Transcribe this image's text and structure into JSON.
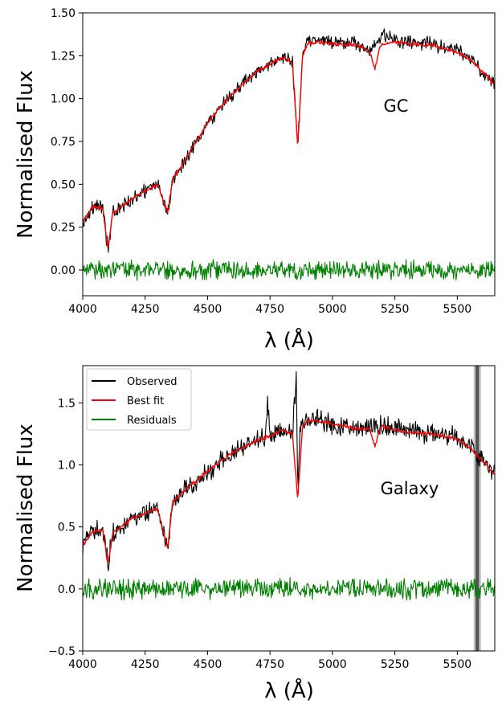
{
  "chart_data": [
    {
      "type": "line",
      "xlabel": "λ (Å)",
      "ylabel": "Normalised Flux",
      "annotation": "GC",
      "xlim": [
        4000,
        5650
      ],
      "ylim": [
        -0.15,
        1.5
      ],
      "xticks": [
        4000,
        4250,
        4500,
        4750,
        5000,
        5250,
        5500
      ],
      "xtick_labels": [
        "4000",
        "4250",
        "4500",
        "4750",
        "5000",
        "5250",
        "5500"
      ],
      "yticks": [
        0.0,
        0.25,
        0.5,
        0.75,
        1.0,
        1.25,
        1.5
      ],
      "ytick_labels": [
        "0.00",
        "0.25",
        "0.50",
        "0.75",
        "1.00",
        "1.25",
        "1.50"
      ],
      "grid": false,
      "legend": null,
      "series": [
        {
          "color": "#000000",
          "noise": 0.03,
          "x": [
            4000,
            4040,
            4080,
            4101,
            4120,
            4200,
            4300,
            4340,
            4360,
            4400,
            4500,
            4600,
            4700,
            4800,
            4840,
            4861,
            4880,
            4900,
            4950,
            5000,
            5100,
            5150,
            5200,
            5250,
            5300,
            5400,
            5500,
            5550,
            5600,
            5650
          ],
          "y": [
            0.28,
            0.37,
            0.37,
            0.11,
            0.33,
            0.42,
            0.5,
            0.33,
            0.53,
            0.62,
            0.86,
            1.03,
            1.16,
            1.24,
            1.21,
            0.72,
            1.24,
            1.33,
            1.34,
            1.33,
            1.32,
            1.27,
            1.37,
            1.34,
            1.33,
            1.32,
            1.28,
            1.24,
            1.16,
            1.08
          ]
        },
        {
          "color": "#ff0000",
          "noise": 0.008,
          "x": [
            4000,
            4040,
            4080,
            4101,
            4120,
            4200,
            4300,
            4340,
            4360,
            4400,
            4500,
            4600,
            4700,
            4800,
            4840,
            4861,
            4880,
            4900,
            4950,
            5000,
            5100,
            5150,
            5170,
            5190,
            5200,
            5250,
            5300,
            5400,
            5500,
            5550,
            5600,
            5650
          ],
          "y": [
            0.28,
            0.37,
            0.36,
            0.12,
            0.33,
            0.42,
            0.5,
            0.33,
            0.53,
            0.62,
            0.86,
            1.03,
            1.16,
            1.24,
            1.21,
            0.72,
            1.24,
            1.32,
            1.33,
            1.32,
            1.31,
            1.27,
            1.17,
            1.3,
            1.32,
            1.33,
            1.32,
            1.31,
            1.27,
            1.23,
            1.16,
            1.08
          ]
        },
        {
          "color": "#008000",
          "noise": 0.04,
          "x": [
            4000,
            5650
          ],
          "y": [
            0.0,
            0.0
          ]
        }
      ]
    },
    {
      "type": "line",
      "xlabel": "λ (Å)",
      "ylabel": "Normalised Flux",
      "annotation": "Galaxy",
      "xlim": [
        4000,
        5650
      ],
      "ylim": [
        -0.5,
        1.8
      ],
      "xticks": [
        4000,
        4250,
        4500,
        4750,
        5000,
        5250,
        5500
      ],
      "xtick_labels": [
        "4000",
        "4250",
        "4500",
        "4750",
        "5000",
        "5250",
        "5500"
      ],
      "yticks": [
        -0.5,
        0.0,
        0.5,
        1.0,
        1.5
      ],
      "ytick_labels": [
        "−0.5",
        "0.0",
        "0.5",
        "1.0",
        "1.5"
      ],
      "grid": false,
      "legend": "top-left",
      "shaded_band": {
        "x0": 5565,
        "x1": 5595,
        "dark_x0": 5573,
        "dark_x1": 5587
      },
      "series": [
        {
          "name": "Observed",
          "color": "#000000",
          "noise": 0.06,
          "x": [
            4000,
            4040,
            4080,
            4101,
            4120,
            4200,
            4300,
            4340,
            4360,
            4400,
            4500,
            4600,
            4700,
            4730,
            4740,
            4750,
            4800,
            4840,
            4855,
            4861,
            4870,
            4900,
            4950,
            5000,
            5100,
            5200,
            5300,
            5400,
            5500,
            5550,
            5600,
            5650
          ],
          "y": [
            0.35,
            0.47,
            0.5,
            0.2,
            0.45,
            0.57,
            0.66,
            0.33,
            0.7,
            0.78,
            0.95,
            1.1,
            1.2,
            1.22,
            1.5,
            1.23,
            1.28,
            1.25,
            1.73,
            0.75,
            1.3,
            1.37,
            1.36,
            1.33,
            1.3,
            1.32,
            1.27,
            1.26,
            1.22,
            1.15,
            1.05,
            0.92
          ]
        },
        {
          "name": "Best fit",
          "color": "#ff0000",
          "noise": 0.01,
          "x": [
            4000,
            4040,
            4080,
            4101,
            4120,
            4200,
            4300,
            4340,
            4360,
            4400,
            4500,
            4600,
            4700,
            4750,
            4800,
            4840,
            4861,
            4880,
            4900,
            4950,
            5000,
            5100,
            5150,
            5170,
            5190,
            5200,
            5300,
            5400,
            5500,
            5550,
            5600,
            5650
          ],
          "y": [
            0.35,
            0.46,
            0.48,
            0.2,
            0.45,
            0.57,
            0.65,
            0.33,
            0.7,
            0.78,
            0.95,
            1.1,
            1.2,
            1.23,
            1.28,
            1.25,
            0.72,
            1.3,
            1.36,
            1.35,
            1.33,
            1.29,
            1.29,
            1.15,
            1.3,
            1.31,
            1.26,
            1.25,
            1.21,
            1.14,
            1.04,
            0.92
          ]
        },
        {
          "name": "Residuals",
          "color": "#008000",
          "noise": 0.06,
          "x": [
            4000,
            5650
          ],
          "y": [
            0.0,
            0.0
          ]
        }
      ]
    }
  ]
}
